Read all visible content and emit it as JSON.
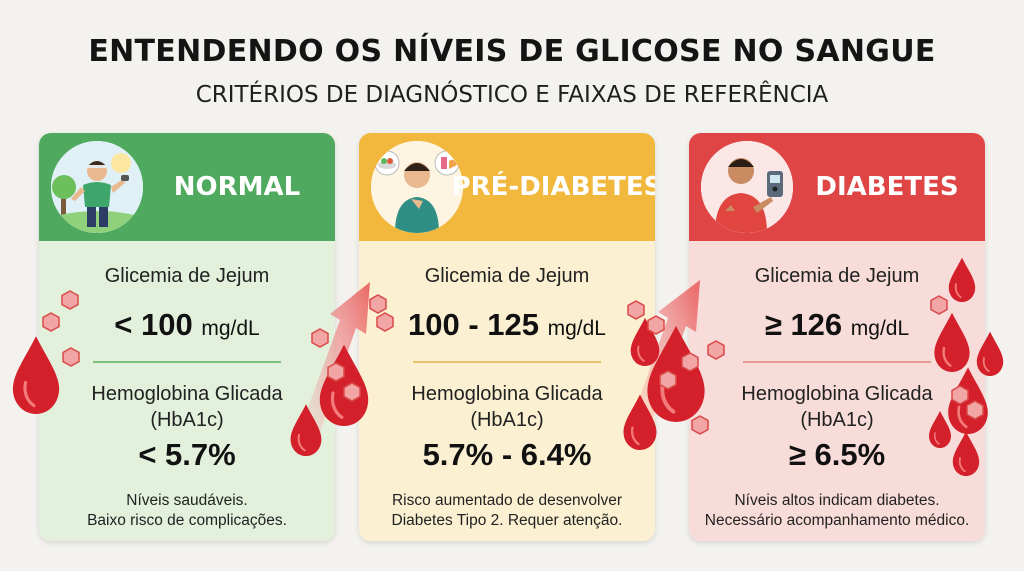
{
  "header": {
    "title": "ENTENDENDO OS NÍVEIS DE GLICOSE NO SANGUE",
    "subtitle": "CRITÉRIOS DE DIAGNÓSTICO E FAIXAS DE REFERÊNCIA"
  },
  "cards": [
    {
      "id": "normal",
      "title": "NORMAL",
      "fasting_label": "Glicemia de Jejum",
      "fasting_value": "< 100",
      "fasting_unit": "mg/dL",
      "hba1c_label_1": "Hemoglobina Glicada",
      "hba1c_label_2": "(HbA1c)",
      "hba1c_value": "< 5.7%",
      "note_1": "Níveis saudáveis.",
      "note_2": "Baixo risco de complicações.",
      "colors": {
        "header": "#4fa95e",
        "body": "#e2f0dc",
        "separator": "#7fbf80"
      },
      "icon": "person-jogging-icon"
    },
    {
      "id": "pre-diabetes",
      "title": "PRÉ-DIABETES",
      "fasting_label": "Glicemia de Jejum",
      "fasting_value": "100 - 125",
      "fasting_unit": "mg/dL",
      "hba1c_label_1": "Hemoglobina Glicada",
      "hba1c_label_2": "(HbA1c)",
      "hba1c_value": "5.7% - 6.4%",
      "note_1": "Risco aumentado de desenvolver",
      "note_2": "Diabetes Tipo 2. Requer atenção.",
      "colors": {
        "header": "#f1b83d",
        "body": "#fbf0d1",
        "separator": "#e6c36a"
      },
      "icon": "person-thinking-food-icon"
    },
    {
      "id": "diabetes",
      "title": "DIABETES",
      "fasting_label": "Glicemia de Jejum",
      "fasting_value": "≥ 126",
      "fasting_unit": "mg/dL",
      "hba1c_label_1": "Hemoglobina Glicada",
      "hba1c_label_2": "(HbA1c)",
      "hba1c_value": "≥ 6.5%",
      "note_1": "Níveis altos indicam diabetes.",
      "note_2": "Necessário acompanhamento médico.",
      "colors": {
        "header": "#e04545",
        "body": "#f8dcd9",
        "separator": "#e79a94"
      },
      "icon": "person-glucose-meter-icon"
    }
  ]
}
